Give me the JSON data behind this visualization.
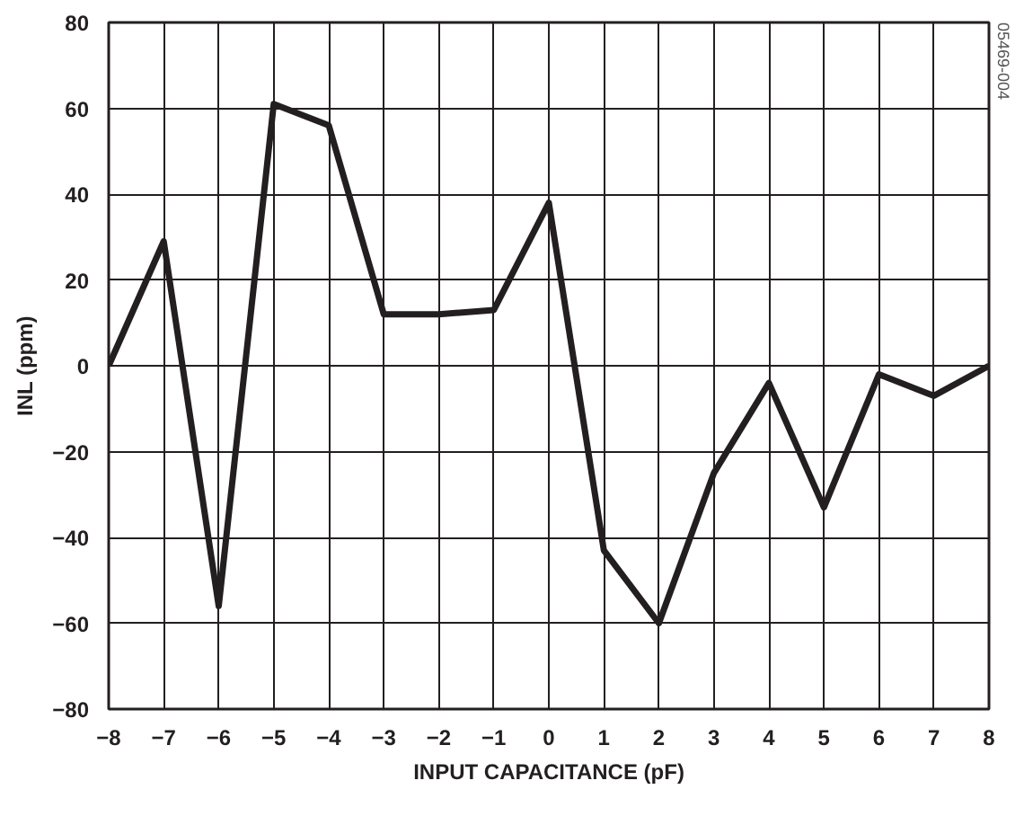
{
  "chart_data": {
    "type": "line",
    "xlabel": "INPUT CAPACITANCE (pF)",
    "ylabel": "INL (ppm)",
    "x": [
      -8,
      -7,
      -6,
      -5,
      -4,
      -3,
      -2,
      -1,
      0,
      1,
      2,
      3,
      4,
      5,
      6,
      7,
      8
    ],
    "series": [
      {
        "color": "#231f20",
        "values": [
          0,
          29,
          -56,
          61,
          56,
          12,
          12,
          13,
          38,
          -43,
          -60,
          -25,
          -4,
          -33,
          -2,
          -7,
          0
        ]
      }
    ],
    "xlim": [
      -8,
      8
    ],
    "xticks": [
      -8,
      -7,
      -6,
      -5,
      -4,
      -3,
      -2,
      -1,
      0,
      1,
      2,
      3,
      4,
      5,
      6,
      7,
      8
    ],
    "ylim": [
      -80,
      80
    ],
    "yticks": [
      -80,
      -60,
      -40,
      -20,
      0,
      20,
      40,
      60,
      80
    ],
    "grid": true,
    "marker": "none",
    "line_style": "solid",
    "annotations": [
      "05469-004"
    ]
  }
}
